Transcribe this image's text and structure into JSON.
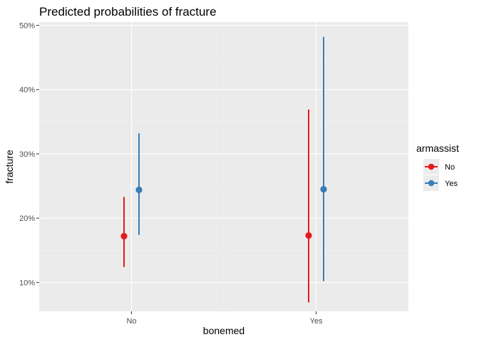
{
  "chart_data": {
    "type": "pointrange",
    "title": "Predicted probabilities of fracture",
    "xlabel": "bonemed",
    "ylabel": "fracture",
    "categories": [
      "No",
      "Yes"
    ],
    "y_ticks": [
      0.1,
      0.2,
      0.3,
      0.4,
      0.5
    ],
    "y_tick_labels": [
      "10%",
      "20%",
      "30%",
      "40%",
      "50%"
    ],
    "ylim": [
      0.055,
      0.505
    ],
    "grid": true,
    "legend": {
      "title": "armassist",
      "placement": "right",
      "entries": [
        "No",
        "Yes"
      ]
    },
    "series": [
      {
        "name": "No",
        "color": "#e41a1c",
        "points": [
          {
            "x": "No",
            "y": 0.172,
            "low": 0.124,
            "high": 0.233
          },
          {
            "x": "Yes",
            "y": 0.173,
            "low": 0.069,
            "high": 0.369
          }
        ]
      },
      {
        "name": "Yes",
        "color": "#377eb8",
        "points": [
          {
            "x": "No",
            "y": 0.244,
            "low": 0.174,
            "high": 0.332
          },
          {
            "x": "Yes",
            "y": 0.245,
            "low": 0.102,
            "high": 0.482
          }
        ]
      }
    ]
  }
}
